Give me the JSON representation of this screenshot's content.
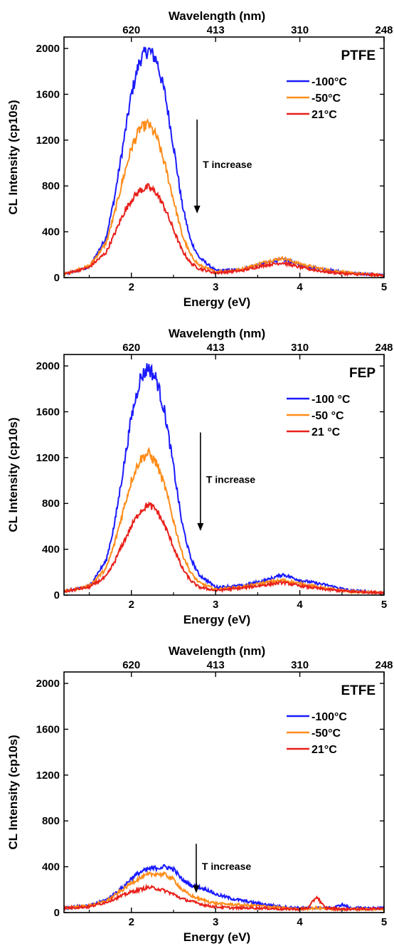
{
  "chart_data": [
    {
      "type": "line",
      "title": "PTFE",
      "xlabel": "Energy (eV)",
      "ylabel": "CL Intensity (cp10s)",
      "top_xlabel": "Wavelength (nm)",
      "xlim": [
        1.2,
        5.0
      ],
      "ylim": [
        0,
        2100
      ],
      "x_ticks": [
        2,
        3,
        4,
        5
      ],
      "y_ticks": [
        0,
        400,
        800,
        1200,
        1600,
        2000
      ],
      "top_ticks": [
        {
          "energy": 2.0,
          "label": "620"
        },
        {
          "energy": 3.0,
          "label": "413"
        },
        {
          "energy": 4.0,
          "label": "310"
        },
        {
          "energy": 5.0,
          "label": "248"
        }
      ],
      "legend_position": "top-right",
      "annotation": {
        "text": "T increase",
        "x": 2.78,
        "from_y": 1380,
        "to_y": 560
      },
      "series": [
        {
          "name": "-100°C",
          "color": "#1a1aff",
          "x": [
            1.2,
            1.5,
            1.7,
            1.8,
            1.9,
            2.0,
            2.1,
            2.2,
            2.3,
            2.4,
            2.5,
            2.6,
            2.7,
            2.8,
            3.0,
            3.3,
            3.6,
            3.8,
            4.0,
            4.3,
            4.6,
            5.0
          ],
          "y": [
            30,
            90,
            350,
            700,
            1150,
            1600,
            1900,
            1990,
            1900,
            1600,
            1150,
            650,
            330,
            180,
            60,
            70,
            130,
            160,
            110,
            70,
            40,
            20
          ]
        },
        {
          "name": "-50°C",
          "color": "#ff8c1a",
          "x": [
            1.2,
            1.5,
            1.7,
            1.8,
            1.9,
            2.0,
            2.1,
            2.2,
            2.3,
            2.4,
            2.5,
            2.6,
            2.7,
            2.8,
            3.0,
            3.3,
            3.6,
            3.8,
            4.0,
            4.3,
            4.6,
            5.0
          ],
          "y": [
            30,
            100,
            300,
            560,
            860,
            1130,
            1300,
            1340,
            1230,
            980,
            680,
            380,
            200,
            110,
            50,
            70,
            140,
            170,
            120,
            70,
            40,
            20
          ]
        },
        {
          "name": "21°C",
          "color": "#e8201a",
          "x": [
            1.2,
            1.5,
            1.7,
            1.8,
            1.9,
            2.0,
            2.1,
            2.2,
            2.3,
            2.4,
            2.5,
            2.6,
            2.7,
            2.8,
            3.0,
            3.3,
            3.6,
            3.8,
            4.0,
            4.3,
            4.6,
            5.0
          ],
          "y": [
            30,
            90,
            220,
            380,
            550,
            680,
            760,
            790,
            740,
            600,
            420,
            240,
            130,
            80,
            40,
            60,
            110,
            130,
            90,
            50,
            30,
            20
          ]
        }
      ]
    },
    {
      "type": "line",
      "title": "FEP",
      "xlabel": "Energy (eV)",
      "ylabel": "CL Intensity (cp10s)",
      "top_xlabel": "Wavelength (nm)",
      "xlim": [
        1.2,
        5.0
      ],
      "ylim": [
        0,
        2100
      ],
      "x_ticks": [
        2,
        3,
        4,
        5
      ],
      "y_ticks": [
        0,
        400,
        800,
        1200,
        1600,
        2000
      ],
      "top_ticks": [
        {
          "energy": 2.0,
          "label": "620"
        },
        {
          "energy": 3.0,
          "label": "413"
        },
        {
          "energy": 4.0,
          "label": "310"
        },
        {
          "energy": 5.0,
          "label": "248"
        }
      ],
      "legend_position": "top-right",
      "annotation": {
        "text": "T increase",
        "x": 2.82,
        "from_y": 1420,
        "to_y": 560
      },
      "series": [
        {
          "name": "-100 °C",
          "color": "#1a1aff",
          "x": [
            1.2,
            1.5,
            1.7,
            1.8,
            1.9,
            2.0,
            2.1,
            2.2,
            2.3,
            2.4,
            2.5,
            2.6,
            2.7,
            2.8,
            3.0,
            3.3,
            3.6,
            3.8,
            4.0,
            4.3,
            4.6,
            5.0
          ],
          "y": [
            30,
            80,
            300,
            620,
            1080,
            1550,
            1880,
            1990,
            1880,
            1580,
            1120,
            630,
            330,
            180,
            70,
            80,
            130,
            180,
            130,
            90,
            40,
            20
          ]
        },
        {
          "name": "-50 °C",
          "color": "#ff8c1a",
          "x": [
            1.2,
            1.5,
            1.7,
            1.8,
            1.9,
            2.0,
            2.1,
            2.2,
            2.3,
            2.4,
            2.5,
            2.6,
            2.7,
            2.8,
            3.0,
            3.3,
            3.6,
            3.8,
            4.0,
            4.3,
            4.6,
            5.0
          ],
          "y": [
            30,
            80,
            230,
            450,
            730,
            1000,
            1180,
            1240,
            1150,
            940,
            650,
            370,
            200,
            110,
            50,
            70,
            110,
            130,
            100,
            60,
            30,
            20
          ]
        },
        {
          "name": "21 °C",
          "color": "#e8201a",
          "x": [
            1.2,
            1.5,
            1.7,
            1.8,
            1.9,
            2.0,
            2.1,
            2.2,
            2.3,
            2.4,
            2.5,
            2.6,
            2.7,
            2.8,
            3.0,
            3.3,
            3.6,
            3.8,
            4.0,
            4.3,
            4.6,
            5.0
          ],
          "y": [
            30,
            70,
            160,
            290,
            450,
            600,
            730,
            790,
            740,
            600,
            420,
            240,
            130,
            70,
            40,
            60,
            90,
            110,
            80,
            50,
            30,
            20
          ]
        }
      ]
    },
    {
      "type": "line",
      "title": "ETFE",
      "xlabel": "Energy (eV)",
      "ylabel": "CL Intensity (cp10s)",
      "top_xlabel": "Wavelength (nm)",
      "xlim": [
        1.2,
        5.0
      ],
      "ylim": [
        0,
        2100
      ],
      "x_ticks": [
        2,
        3,
        4,
        5
      ],
      "y_ticks": [
        0,
        400,
        800,
        1200,
        1600,
        2000
      ],
      "top_ticks": [
        {
          "energy": 2.0,
          "label": "620"
        },
        {
          "energy": 3.0,
          "label": "413"
        },
        {
          "energy": 4.0,
          "label": "310"
        },
        {
          "energy": 5.0,
          "label": "248"
        }
      ],
      "legend_position": "top-right",
      "annotation": {
        "text": "T increase",
        "x": 2.77,
        "from_y": 600,
        "to_y": 170
      },
      "series": [
        {
          "name": "-100°C",
          "color": "#1a1aff",
          "x": [
            1.2,
            1.5,
            1.7,
            1.9,
            2.0,
            2.1,
            2.2,
            2.3,
            2.4,
            2.5,
            2.6,
            2.7,
            2.8,
            2.9,
            3.0,
            3.2,
            3.5,
            3.8,
            4.0,
            4.2,
            4.4,
            4.5,
            4.6,
            4.8,
            5.0
          ],
          "y": [
            40,
            60,
            110,
            220,
            300,
            350,
            380,
            390,
            400,
            380,
            290,
            240,
            220,
            200,
            160,
            120,
            80,
            50,
            40,
            40,
            40,
            70,
            40,
            40,
            40
          ]
        },
        {
          "name": "-50°C",
          "color": "#ff8c1a",
          "x": [
            1.2,
            1.5,
            1.7,
            1.9,
            2.0,
            2.1,
            2.2,
            2.3,
            2.4,
            2.5,
            2.6,
            2.7,
            2.8,
            2.9,
            3.0,
            3.2,
            3.5,
            3.8,
            4.0,
            4.2,
            4.4,
            4.6,
            4.8,
            5.0
          ],
          "y": [
            40,
            60,
            100,
            200,
            260,
            300,
            330,
            340,
            330,
            290,
            200,
            150,
            120,
            100,
            80,
            70,
            60,
            40,
            30,
            40,
            30,
            30,
            30,
            30
          ]
        },
        {
          "name": "21°C",
          "color": "#e8201a",
          "x": [
            1.2,
            1.5,
            1.7,
            1.9,
            2.0,
            2.1,
            2.2,
            2.3,
            2.4,
            2.5,
            2.6,
            2.7,
            2.8,
            2.9,
            3.0,
            3.2,
            3.5,
            3.8,
            4.0,
            4.1,
            4.2,
            4.3,
            4.5,
            4.8,
            5.0
          ],
          "y": [
            40,
            50,
            90,
            150,
            180,
            200,
            220,
            210,
            190,
            160,
            120,
            100,
            80,
            60,
            50,
            40,
            40,
            30,
            30,
            40,
            140,
            40,
            30,
            30,
            40
          ]
        }
      ]
    }
  ]
}
